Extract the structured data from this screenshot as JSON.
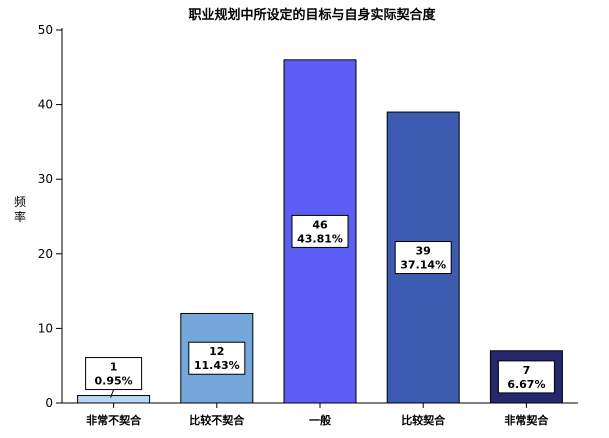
{
  "chart_data": {
    "type": "bar",
    "title": "职业规划中所设定的目标与自身实际契合度",
    "xlabel": "",
    "ylabel": "频率",
    "ylim": [
      0,
      50
    ],
    "yticks": [
      0,
      10,
      20,
      30,
      40,
      50
    ],
    "grid": false,
    "legend": "none",
    "categories": [
      "非常不契合",
      "比较不契合",
      "一般",
      "比较契合",
      "非常契合"
    ],
    "values": [
      1,
      12,
      46,
      39,
      7
    ],
    "percent_labels": [
      "0.95%",
      "11.43%",
      "43.81%",
      "37.14%",
      "6.67%"
    ],
    "colors": [
      "#b9d7f2",
      "#76a7da",
      "#5a5ef5",
      "#3d5bb0",
      "#26286e"
    ]
  }
}
